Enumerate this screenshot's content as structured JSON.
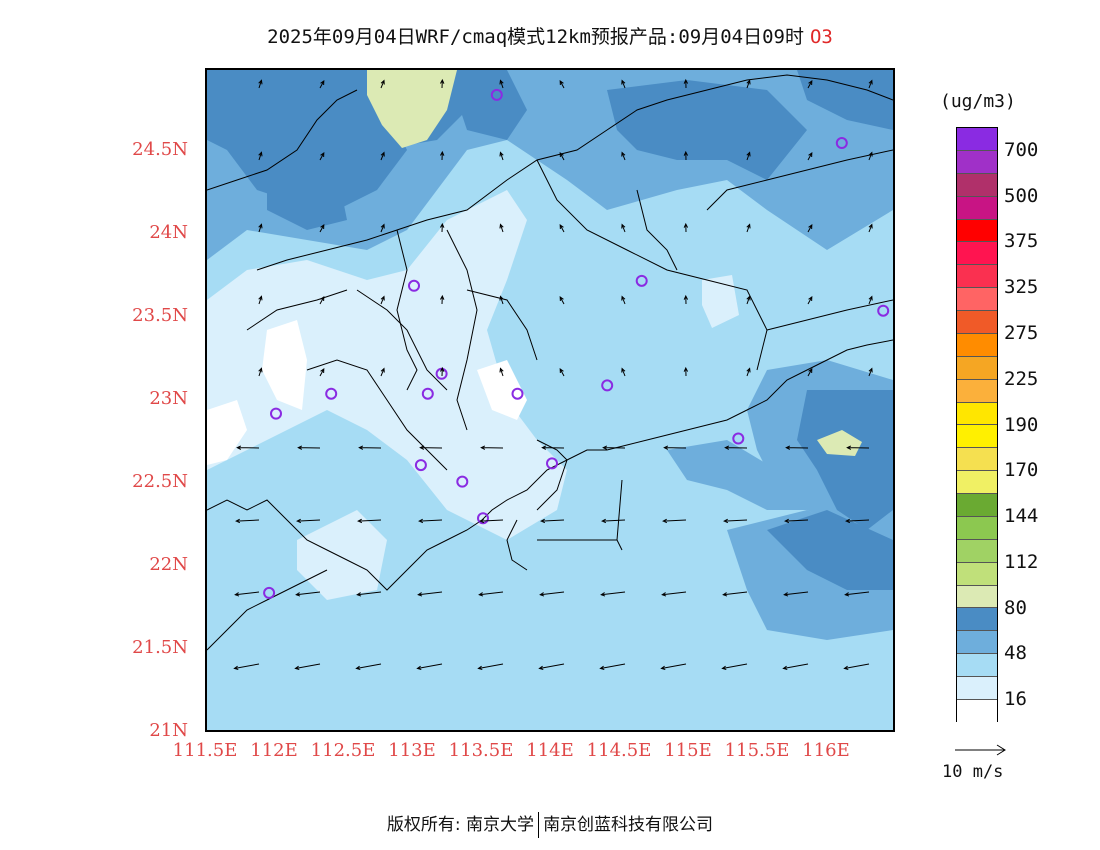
{
  "title": {
    "main": "2025年09月04日WRF/cmaq模式12km预报产品:09月04日09时",
    "species": "O3"
  },
  "axes": {
    "lat_labels": [
      "24.5N",
      "24N",
      "23.5N",
      "23N",
      "22.5N",
      "22N",
      "21.5N",
      "21N"
    ],
    "lon_labels": [
      "111.5E",
      "112E",
      "112.5E",
      "113E",
      "113.5E",
      "114E",
      "114.5E",
      "115E",
      "115.5E",
      "116E"
    ],
    "lat_values": [
      24.5,
      24,
      23.5,
      23,
      22.5,
      22,
      21.5,
      21
    ],
    "lon_values": [
      111.5,
      112,
      112.5,
      113,
      113.5,
      114,
      114.5,
      115,
      115.5,
      116
    ],
    "lon_range": [
      111.5,
      116.5
    ],
    "lat_range": [
      21,
      25
    ]
  },
  "colorbar": {
    "units": "(ug/m3)",
    "colors": [
      "#8a2be2",
      "#a030c8",
      "#b0306a",
      "#c81484",
      "#ff0000",
      "#ff1450",
      "#fa3050",
      "#ff6464",
      "#f05a28",
      "#ff8c00",
      "#f5a623",
      "#fbb03b",
      "#ffe600",
      "#fff000",
      "#f5e050",
      "#f0f064",
      "#6aaa32",
      "#8cc850",
      "#a0d264",
      "#c0e07a",
      "#dceab4",
      "#4a8cc4",
      "#6eaedc",
      "#a6dcf4",
      "#daf0fc",
      "#ffffff"
    ],
    "tick_labels": [
      "700",
      "500",
      "375",
      "325",
      "275",
      "225",
      "190",
      "170",
      "144",
      "112",
      "80",
      "48",
      "16"
    ]
  },
  "vector_legend": {
    "label": "10 m/s"
  },
  "footer": {
    "left": "版权所有: 南京大学",
    "right": "南京创蓝科技有限公司"
  },
  "stations": [
    [
      113.6,
      24.85
    ],
    [
      116.1,
      24.56
    ],
    [
      113.0,
      23.7
    ],
    [
      114.65,
      23.73
    ],
    [
      116.4,
      23.55
    ],
    [
      112.0,
      22.93
    ],
    [
      112.4,
      23.05
    ],
    [
      113.1,
      23.05
    ],
    [
      113.2,
      23.17
    ],
    [
      113.75,
      23.05
    ],
    [
      114.4,
      23.1
    ],
    [
      115.35,
      22.78
    ],
    [
      113.05,
      22.62
    ],
    [
      113.35,
      22.52
    ],
    [
      114.0,
      22.63
    ],
    [
      113.5,
      22.3
    ],
    [
      111.95,
      21.85
    ]
  ]
}
